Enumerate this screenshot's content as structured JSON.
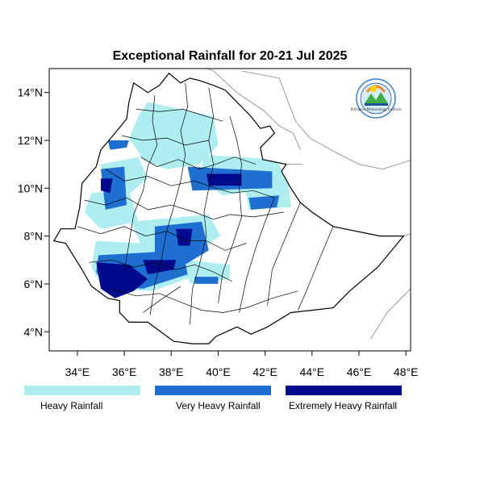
{
  "title": "Exceptional Rainfall for 20-21 Jul 2025",
  "axes": {
    "x_ticks": [
      {
        "value": 34,
        "label": "34°E"
      },
      {
        "value": 36,
        "label": "36°E"
      },
      {
        "value": 38,
        "label": "38°E"
      },
      {
        "value": 40,
        "label": "40°E"
      },
      {
        "value": 42,
        "label": "42°E"
      },
      {
        "value": 44,
        "label": "44°E"
      },
      {
        "value": 46,
        "label": "46°E"
      },
      {
        "value": 48,
        "label": "48°E"
      }
    ],
    "y_ticks": [
      {
        "value": 4,
        "label": "4°N"
      },
      {
        "value": 6,
        "label": "6°N"
      },
      {
        "value": 8,
        "label": "8°N"
      },
      {
        "value": 10,
        "label": "10°N"
      },
      {
        "value": 12,
        "label": "12°N"
      },
      {
        "value": 14,
        "label": "14°N"
      }
    ],
    "lon_range": [
      32.8,
      48.2
    ],
    "lat_range": [
      3.2,
      15.0
    ]
  },
  "legend": [
    {
      "label": "Heavy Rainfall",
      "color": "#aeeef0"
    },
    {
      "label": "Very Heavy Rainfall",
      "color": "#1f6fd0"
    },
    {
      "label": "Extremely Heavy Rainfall",
      "color": "#000a8c"
    }
  ],
  "colors": {
    "heavy": "#aeeef0",
    "very_heavy": "#1f6fd0",
    "extreme": "#000a8c",
    "border": "#000000",
    "neighbor_border": "#9a9a9a"
  },
  "logo": {
    "icon": "agency-logo-icon",
    "caption": "Ethiopian Meteorology Institute"
  },
  "rainfall_regions": {
    "heavy": [
      [
        [
          37.0,
          13.6
        ],
        [
          39.8,
          13.0
        ],
        [
          40.0,
          11.8
        ],
        [
          39.2,
          11.0
        ],
        [
          37.8,
          10.8
        ],
        [
          36.8,
          11.2
        ],
        [
          36.2,
          12.1
        ],
        [
          36.6,
          13.0
        ]
      ],
      [
        [
          35.0,
          11.0
        ],
        [
          36.6,
          11.3
        ],
        [
          37.0,
          10.4
        ],
        [
          36.0,
          9.6
        ],
        [
          35.1,
          9.9
        ]
      ],
      [
        [
          39.4,
          11.4
        ],
        [
          42.5,
          11.2
        ],
        [
          43.0,
          10.1
        ],
        [
          40.2,
          9.7
        ],
        [
          39.2,
          10.4
        ]
      ],
      [
        [
          34.6,
          9.8
        ],
        [
          36.2,
          9.9
        ],
        [
          36.6,
          8.6
        ],
        [
          35.0,
          8.3
        ],
        [
          34.3,
          9.0
        ]
      ],
      [
        [
          36.3,
          8.6
        ],
        [
          39.6,
          8.9
        ],
        [
          40.1,
          8.0
        ],
        [
          38.8,
          7.2
        ],
        [
          36.8,
          7.4
        ]
      ],
      [
        [
          41.1,
          10.3
        ],
        [
          43.0,
          10.3
        ],
        [
          43.1,
          9.2
        ],
        [
          41.3,
          9.1
        ]
      ],
      [
        [
          34.8,
          7.8
        ],
        [
          38.6,
          7.6
        ],
        [
          38.9,
          6.3
        ],
        [
          37.2,
          5.7
        ],
        [
          35.1,
          5.8
        ],
        [
          34.6,
          6.7
        ]
      ],
      [
        [
          38.6,
          7.0
        ],
        [
          40.5,
          6.8
        ],
        [
          40.5,
          6.2
        ],
        [
          38.8,
          6.0
        ]
      ]
    ],
    "very_heavy": [
      [
        [
          38.7,
          10.9
        ],
        [
          42.3,
          10.7
        ],
        [
          42.3,
          10.0
        ],
        [
          38.9,
          9.9
        ]
      ],
      [
        [
          35.0,
          10.8
        ],
        [
          36.0,
          10.9
        ],
        [
          36.1,
          9.3
        ],
        [
          35.2,
          9.1
        ]
      ],
      [
        [
          37.3,
          8.4
        ],
        [
          39.3,
          8.6
        ],
        [
          39.6,
          7.4
        ],
        [
          38.4,
          6.7
        ],
        [
          37.3,
          7.0
        ]
      ],
      [
        [
          34.9,
          7.2
        ],
        [
          38.5,
          7.4
        ],
        [
          38.7,
          6.4
        ],
        [
          36.8,
          5.8
        ],
        [
          35.2,
          5.9
        ],
        [
          34.8,
          6.5
        ]
      ],
      [
        [
          41.3,
          9.6
        ],
        [
          42.6,
          9.7
        ],
        [
          42.5,
          9.2
        ],
        [
          41.4,
          9.1
        ]
      ],
      [
        [
          39.0,
          6.3
        ],
        [
          40.0,
          6.3
        ],
        [
          40.0,
          6.0
        ],
        [
          39.0,
          6.0
        ]
      ],
      [
        [
          35.3,
          12.0
        ],
        [
          36.2,
          12.0
        ],
        [
          36.1,
          11.7
        ],
        [
          35.4,
          11.6
        ]
      ]
    ],
    "extreme": [
      [
        [
          34.8,
          6.9
        ],
        [
          36.2,
          6.8
        ],
        [
          37.0,
          6.2
        ],
        [
          36.4,
          5.7
        ],
        [
          35.6,
          5.4
        ],
        [
          35.0,
          5.8
        ]
      ],
      [
        [
          36.8,
          7.0
        ],
        [
          38.2,
          7.0
        ],
        [
          38.1,
          6.6
        ],
        [
          37.0,
          6.4
        ]
      ],
      [
        [
          39.5,
          10.6
        ],
        [
          41.0,
          10.6
        ],
        [
          41.0,
          10.1
        ],
        [
          39.6,
          10.1
        ]
      ],
      [
        [
          38.2,
          8.3
        ],
        [
          38.9,
          8.3
        ],
        [
          38.8,
          7.6
        ],
        [
          38.3,
          7.6
        ]
      ],
      [
        [
          35.0,
          10.4
        ],
        [
          35.5,
          10.4
        ],
        [
          35.4,
          9.8
        ],
        [
          35.0,
          9.9
        ]
      ]
    ]
  },
  "ethiopia_outline": [
    [
      36.4,
      14.4
    ],
    [
      37.0,
      14.0
    ],
    [
      37.5,
      14.3
    ],
    [
      37.9,
      14.8
    ],
    [
      38.4,
      14.4
    ],
    [
      38.8,
      14.6
    ],
    [
      39.2,
      14.5
    ],
    [
      39.8,
      14.3
    ],
    [
      40.3,
      14.1
    ],
    [
      40.6,
      13.8
    ],
    [
      41.0,
      13.4
    ],
    [
      41.4,
      13.0
    ],
    [
      41.8,
      12.5
    ],
    [
      42.2,
      12.6
    ],
    [
      42.4,
      12.3
    ],
    [
      41.8,
      11.7
    ],
    [
      41.9,
      11.2
    ],
    [
      42.9,
      11.0
    ],
    [
      42.7,
      10.7
    ],
    [
      43.1,
      10.0
    ],
    [
      43.5,
      9.4
    ],
    [
      44.0,
      9.0
    ],
    [
      44.9,
      8.4
    ],
    [
      46.9,
      8.0
    ],
    [
      47.9,
      8.0
    ],
    [
      46.8,
      6.7
    ],
    [
      45.6,
      5.7
    ],
    [
      44.9,
      5.0
    ],
    [
      44.0,
      4.9
    ],
    [
      43.1,
      4.8
    ],
    [
      42.1,
      4.2
    ],
    [
      41.4,
      3.9
    ],
    [
      40.8,
      4.2
    ],
    [
      39.9,
      3.8
    ],
    [
      39.6,
      3.5
    ],
    [
      38.9,
      3.5
    ],
    [
      38.1,
      3.6
    ],
    [
      37.0,
      4.4
    ],
    [
      36.2,
      4.4
    ],
    [
      35.8,
      4.8
    ],
    [
      35.8,
      5.3
    ],
    [
      35.3,
      5.4
    ],
    [
      34.6,
      5.9
    ],
    [
      34.2,
      6.6
    ],
    [
      33.5,
      7.7
    ],
    [
      33.0,
      7.8
    ],
    [
      33.3,
      8.3
    ],
    [
      33.9,
      8.3
    ],
    [
      34.1,
      9.2
    ],
    [
      34.2,
      10.2
    ],
    [
      34.8,
      10.9
    ],
    [
      35.0,
      11.6
    ],
    [
      35.6,
      12.3
    ],
    [
      36.1,
      12.9
    ],
    [
      36.2,
      13.6
    ]
  ],
  "neighbor_lines": [
    [
      [
        39.0,
        15.2
      ],
      [
        39.8,
        14.9
      ],
      [
        40.8,
        14.0
      ],
      [
        42.0,
        13.2
      ],
      [
        42.6,
        12.6
      ],
      [
        43.2,
        12.3
      ],
      [
        43.5,
        11.6
      ]
    ],
    [
      [
        42.9,
        11.0
      ],
      [
        43.3,
        11.0
      ],
      [
        43.6,
        11.0
      ]
    ],
    [
      [
        41.0,
        14.9
      ],
      [
        42.6,
        14.6
      ],
      [
        43.3,
        12.8
      ],
      [
        43.9,
        12.1
      ],
      [
        45.0,
        11.5
      ],
      [
        46.0,
        11.0
      ],
      [
        47.0,
        10.8
      ],
      [
        48.3,
        11.2
      ]
    ],
    [
      [
        47.9,
        8.0
      ],
      [
        48.2,
        8.1
      ]
    ],
    [
      [
        46.5,
        3.7
      ],
      [
        47.2,
        4.8
      ],
      [
        48.2,
        5.8
      ]
    ]
  ],
  "internal_borders": [
    [
      [
        36.5,
        13.3
      ],
      [
        37.5,
        13.2
      ],
      [
        38.5,
        13.3
      ],
      [
        39.5,
        13.0
      ],
      [
        40.2,
        12.8
      ]
    ],
    [
      [
        35.9,
        12.2
      ],
      [
        36.8,
        12.0
      ],
      [
        37.8,
        12.1
      ],
      [
        38.6,
        11.8
      ],
      [
        39.6,
        12.0
      ]
    ],
    [
      [
        36.7,
        11.3
      ],
      [
        37.4,
        10.9
      ],
      [
        38.3,
        11.2
      ],
      [
        39.2,
        10.8
      ],
      [
        39.9,
        11.0
      ],
      [
        40.7,
        11.3
      ],
      [
        41.6,
        11.0
      ]
    ],
    [
      [
        35.2,
        10.8
      ],
      [
        36.0,
        10.3
      ],
      [
        37.0,
        10.5
      ],
      [
        38.0,
        10.1
      ],
      [
        39.0,
        10.3
      ],
      [
        39.9,
        10.0
      ],
      [
        40.6,
        9.8
      ],
      [
        41.5,
        9.9
      ],
      [
        42.4,
        9.6
      ]
    ],
    [
      [
        34.3,
        9.5
      ],
      [
        35.2,
        9.3
      ],
      [
        36.1,
        9.6
      ],
      [
        37.0,
        9.1
      ],
      [
        38.0,
        9.3
      ],
      [
        39.0,
        9.0
      ],
      [
        39.8,
        8.7
      ],
      [
        40.5,
        8.9
      ],
      [
        41.5,
        8.8
      ],
      [
        42.8,
        9.0
      ]
    ],
    [
      [
        34.0,
        8.4
      ],
      [
        35.0,
        8.1
      ],
      [
        36.0,
        8.4
      ],
      [
        36.9,
        8.0
      ],
      [
        37.8,
        8.2
      ],
      [
        38.7,
        7.8
      ],
      [
        39.5,
        7.8
      ],
      [
        40.3,
        7.4
      ],
      [
        41.2,
        7.7
      ]
    ],
    [
      [
        34.5,
        6.9
      ],
      [
        35.5,
        7.0
      ],
      [
        36.4,
        6.7
      ],
      [
        37.3,
        6.9
      ],
      [
        38.2,
        6.6
      ],
      [
        39.0,
        6.8
      ],
      [
        39.8,
        6.5
      ],
      [
        40.6,
        6.1
      ]
    ],
    [
      [
        35.4,
        5.8
      ],
      [
        36.5,
        5.5
      ],
      [
        37.5,
        5.6
      ],
      [
        38.5,
        5.2
      ],
      [
        39.3,
        4.9
      ],
      [
        40.2,
        4.8
      ],
      [
        41.2,
        5.0
      ],
      [
        42.3,
        5.4
      ],
      [
        43.4,
        5.7
      ]
    ],
    [
      [
        37.3,
        13.9
      ],
      [
        37.2,
        12.8
      ],
      [
        37.4,
        11.8
      ],
      [
        37.0,
        10.9
      ],
      [
        36.8,
        9.9
      ],
      [
        36.4,
        8.9
      ],
      [
        36.2,
        7.7
      ],
      [
        36.0,
        6.5
      ]
    ],
    [
      [
        38.6,
        14.4
      ],
      [
        38.7,
        13.4
      ],
      [
        38.4,
        12.4
      ],
      [
        38.6,
        11.4
      ],
      [
        38.4,
        10.3
      ],
      [
        38.1,
        9.2
      ],
      [
        37.8,
        8.2
      ],
      [
        37.6,
        7.1
      ],
      [
        37.3,
        6.0
      ],
      [
        37.1,
        4.7
      ]
    ],
    [
      [
        39.6,
        14.2
      ],
      [
        39.8,
        13.0
      ],
      [
        39.6,
        12.0
      ],
      [
        39.8,
        11.0
      ],
      [
        39.6,
        10.0
      ],
      [
        39.4,
        9.0
      ],
      [
        39.5,
        8.0
      ],
      [
        39.2,
        6.8
      ],
      [
        38.9,
        5.8
      ],
      [
        38.8,
        4.3
      ]
    ],
    [
      [
        40.5,
        13.0
      ],
      [
        40.8,
        12.0
      ],
      [
        41.0,
        11.0
      ],
      [
        40.9,
        10.0
      ],
      [
        41.0,
        8.8
      ],
      [
        40.6,
        7.6
      ],
      [
        40.2,
        6.5
      ],
      [
        40.0,
        5.2
      ]
    ],
    [
      [
        42.4,
        9.6
      ],
      [
        42.0,
        8.6
      ],
      [
        41.6,
        7.5
      ],
      [
        41.2,
        6.2
      ],
      [
        40.9,
        4.8
      ]
    ],
    [
      [
        43.5,
        9.4
      ],
      [
        42.9,
        8.0
      ],
      [
        42.3,
        6.6
      ],
      [
        42.1,
        5.1
      ]
    ],
    [
      [
        44.9,
        8.4
      ],
      [
        44.3,
        7.0
      ],
      [
        43.8,
        5.8
      ],
      [
        43.4,
        4.9
      ]
    ],
    [
      [
        36.8,
        4.8
      ],
      [
        37.5,
        5.3
      ],
      [
        38.4,
        5.9
      ]
    ]
  ]
}
